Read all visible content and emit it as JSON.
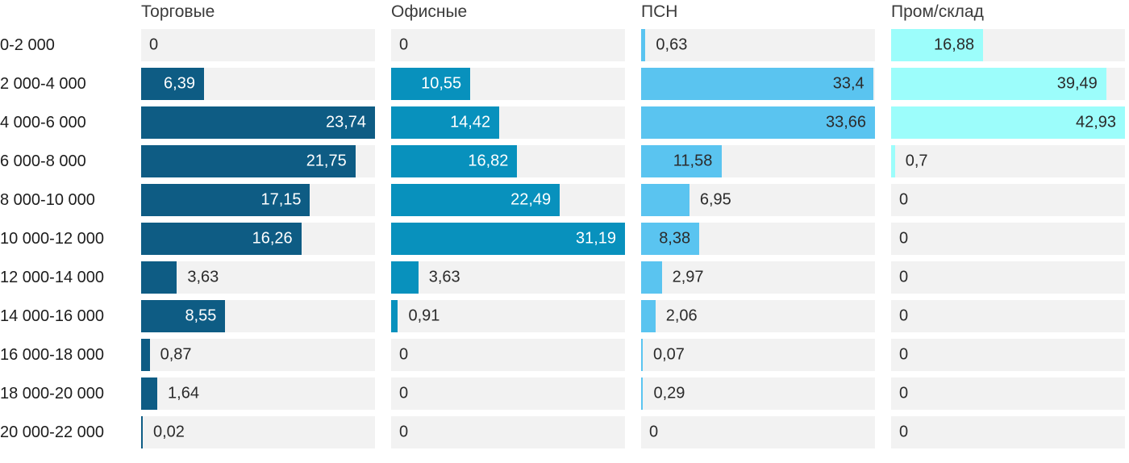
{
  "chart_data": {
    "type": "bar",
    "orientation": "horizontal",
    "title": "",
    "xlabel": "",
    "ylabel": "",
    "grid": false,
    "legend_position": "column-headers",
    "scaling": "per-column-max",
    "track_color": "#f2f2f2",
    "outside_text_color": "#2b2b2b",
    "categories": [
      "0-2 000",
      "2 000-4 000",
      "4 000-6 000",
      "6 000-8 000",
      "8 000-10 000",
      "10 000-12 000",
      "12 000-14 000",
      "14 000-16 000",
      "16 000-18 000",
      "18 000-20 000",
      "20 000-22 000"
    ],
    "series": [
      {
        "name": "Торговые",
        "color": "#0e5c84",
        "inside_text_color": "#ffffff",
        "values": [
          0,
          6.39,
          23.74,
          21.75,
          17.15,
          16.26,
          3.63,
          8.55,
          0.87,
          1.64,
          0.02
        ],
        "labels": [
          "0",
          "6,39",
          "23,74",
          "21,75",
          "17,15",
          "16,26",
          "3,63",
          "8,55",
          "0,87",
          "1,64",
          "0,02"
        ]
      },
      {
        "name": "Офисные",
        "color": "#0891bd",
        "inside_text_color": "#ffffff",
        "values": [
          0,
          10.55,
          14.42,
          16.82,
          22.49,
          31.19,
          3.63,
          0.91,
          0,
          0,
          0
        ],
        "labels": [
          "0",
          "10,55",
          "14,42",
          "16,82",
          "22,49",
          "31,19",
          "3,63",
          "0,91",
          "0",
          "0",
          "0"
        ]
      },
      {
        "name": "ПСН",
        "color": "#5ac4f0",
        "inside_text_color": "#2b2b2b",
        "values": [
          0.63,
          33.4,
          33.66,
          11.58,
          6.95,
          8.38,
          2.97,
          2.06,
          0.07,
          0.29,
          0
        ],
        "labels": [
          "0,63",
          "33,4",
          "33,66",
          "11,58",
          "6,95",
          "8,38",
          "2,97",
          "2,06",
          "0,07",
          "0,29",
          "0"
        ]
      },
      {
        "name": "Пром/склад",
        "color": "#9cfdfb",
        "inside_text_color": "#2b2b2b",
        "values": [
          16.88,
          39.49,
          42.93,
          0.7,
          0,
          0,
          0,
          0,
          0,
          0,
          0
        ],
        "labels": [
          "16,88",
          "39,49",
          "42,93",
          "0,7",
          "0",
          "0",
          "0",
          "0",
          "0",
          "0",
          "0"
        ]
      }
    ]
  }
}
